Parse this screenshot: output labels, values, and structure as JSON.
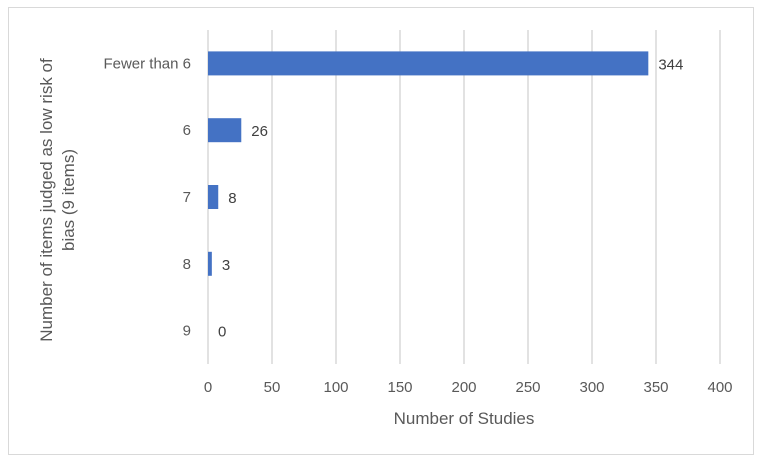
{
  "chart_data": {
    "type": "bar",
    "orientation": "horizontal",
    "categories": [
      "Fewer than 6",
      "6",
      "7",
      "8",
      "9"
    ],
    "values": [
      344,
      26,
      8,
      3,
      0
    ],
    "data_labels": [
      "344",
      "26",
      "8",
      "3",
      "0"
    ],
    "xlabel": "Number of Studies",
    "ylabel": "Number of items judged as low risk of bias (9 items)",
    "ylabel_lines": [
      "Number of items judged as low risk of",
      "bias (9 items)"
    ],
    "xlim": [
      0,
      400
    ],
    "xticks": [
      0,
      50,
      100,
      150,
      200,
      250,
      300,
      350,
      400
    ],
    "xtick_labels": [
      "0",
      "50",
      "100",
      "150",
      "200",
      "250",
      "300",
      "350",
      "400"
    ],
    "grid": "vertical",
    "legend": "none",
    "bar_color": "#4472c4",
    "grid_color": "#d9d9d9"
  }
}
